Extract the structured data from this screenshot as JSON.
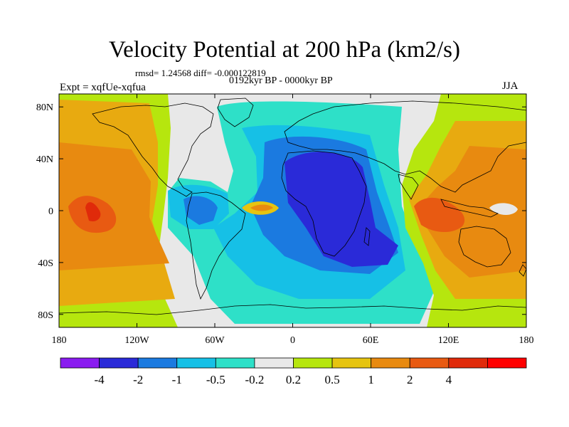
{
  "title": "Velocity Potential at 200 hPa (km2/s)",
  "stats": "rmsd= 1.24568 diff= -0.000122819",
  "period": "0192kyr BP - 0000kyr BP",
  "experiment": "Expt = xqfUe-xqfua",
  "season": "JJA",
  "map": {
    "projection": "cylindrical-equidistant",
    "lon_range": [
      -180,
      180
    ],
    "lat_range": [
      -90,
      90
    ],
    "lat_ticks": [
      {
        "value": 80,
        "label": "80N"
      },
      {
        "value": 40,
        "label": "40N"
      },
      {
        "value": 0,
        "label": "0"
      },
      {
        "value": -40,
        "label": "40S"
      },
      {
        "value": -80,
        "label": "80S"
      }
    ],
    "lon_ticks": [
      {
        "value": -180,
        "label": "180"
      },
      {
        "value": -120,
        "label": "120W"
      },
      {
        "value": -60,
        "label": "60W"
      },
      {
        "value": 0,
        "label": "0"
      },
      {
        "value": 60,
        "label": "60E"
      },
      {
        "value": 120,
        "label": "120E"
      },
      {
        "value": 180,
        "label": "180"
      }
    ]
  },
  "colorbar": {
    "colors": [
      "#8a1cf0",
      "#2a2ad8",
      "#1b7ae0",
      "#16c0e6",
      "#2ee0c8",
      "#e8e8e8",
      "#b6e60e",
      "#e6c410",
      "#e88a10",
      "#e85a12",
      "#e02a0a",
      "#ff0000"
    ],
    "labels": [
      "-4",
      "-2",
      "-1",
      "-0.5",
      "-0.2",
      "0.2",
      "0.5",
      "1",
      "2",
      "4"
    ]
  }
}
